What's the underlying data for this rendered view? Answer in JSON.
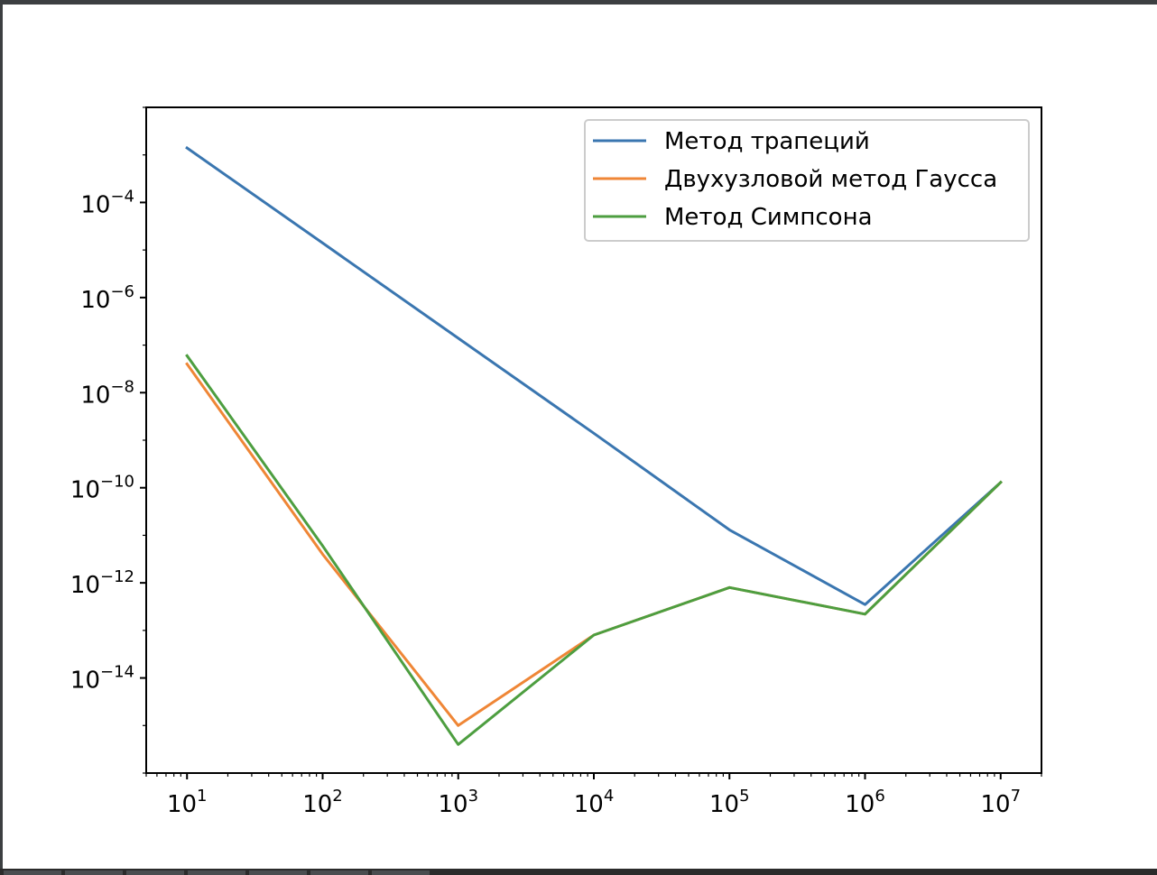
{
  "chart_data": {
    "type": "line",
    "title": "",
    "xlabel": "",
    "ylabel": "",
    "xscale": "log",
    "yscale": "log",
    "xlim": [
      5,
      20000000
    ],
    "ylim": [
      1e-16,
      0.01
    ],
    "grid": false,
    "legend_position": "top-right",
    "x": [
      10,
      100,
      1000,
      10000,
      100000,
      1000000,
      10000000
    ],
    "x_ticks": [
      {
        "value": 10,
        "base": "10",
        "exp": "1"
      },
      {
        "value": 100,
        "base": "10",
        "exp": "2"
      },
      {
        "value": 1000,
        "base": "10",
        "exp": "3"
      },
      {
        "value": 10000,
        "base": "10",
        "exp": "4"
      },
      {
        "value": 100000,
        "base": "10",
        "exp": "5"
      },
      {
        "value": 1000000,
        "base": "10",
        "exp": "6"
      },
      {
        "value": 10000000,
        "base": "10",
        "exp": "7"
      }
    ],
    "y_ticks": [
      {
        "value": 0.0001,
        "base": "10",
        "exp": "−4"
      },
      {
        "value": 1e-06,
        "base": "10",
        "exp": "−6"
      },
      {
        "value": 1e-08,
        "base": "10",
        "exp": "−8"
      },
      {
        "value": 1e-10,
        "base": "10",
        "exp": "−10"
      },
      {
        "value": 1e-12,
        "base": "10",
        "exp": "−12"
      },
      {
        "value": 1e-14,
        "base": "10",
        "exp": "−14"
      }
    ],
    "series": [
      {
        "name": "Метод трапеций",
        "color": "#3a76b0",
        "values": [
          0.0014,
          1.4e-05,
          1.4e-07,
          1.4e-09,
          1.3e-11,
          3.5e-13,
          1.3e-10
        ]
      },
      {
        "name": "Двухузловой метод Гаусса",
        "color": "#ef8636",
        "values": [
          4e-08,
          4e-12,
          1e-15,
          8e-14,
          8e-13,
          2.2e-13,
          1.3e-10
        ]
      },
      {
        "name": "Метод Симпсона",
        "color": "#4d9e40",
        "values": [
          6e-08,
          6e-12,
          4e-16,
          8e-14,
          8e-13,
          2.2e-13,
          1.3e-10
        ]
      }
    ]
  }
}
